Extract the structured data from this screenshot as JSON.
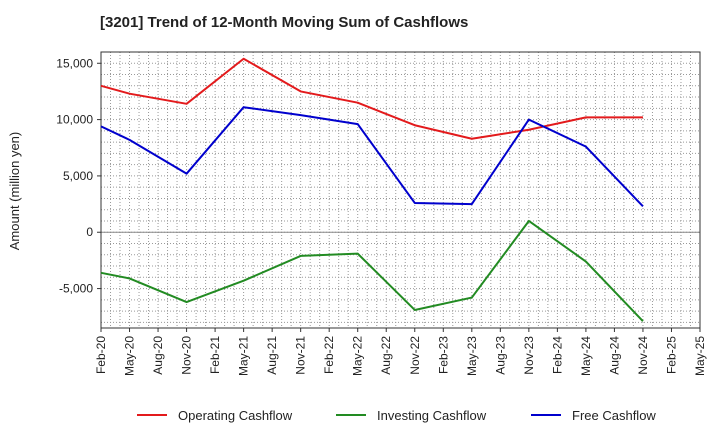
{
  "chart_data": {
    "type": "line",
    "title": "[3201]  Trend of 12-Month Moving Sum of Cashflows",
    "ylabel": "Amount (million yen)",
    "xlabel": "",
    "ylim": [
      -8500,
      16000
    ],
    "yticks": [
      -5000,
      0,
      5000,
      10000,
      15000
    ],
    "ytick_labels": [
      "-5,000",
      "0",
      "5,000",
      "10,000",
      "15,000"
    ],
    "categories": [
      "Feb-20",
      "May-20",
      "Aug-20",
      "Nov-20",
      "Feb-21",
      "May-21",
      "Aug-21",
      "Nov-21",
      "Feb-22",
      "May-22",
      "Aug-22",
      "Nov-22",
      "Feb-23",
      "May-23",
      "Aug-23",
      "Nov-23",
      "Feb-24",
      "May-24",
      "Aug-24",
      "Nov-24",
      "Feb-25",
      "May-25"
    ],
    "grid": true,
    "legend_position": "bottom",
    "series": [
      {
        "name": "Operating Cashflow",
        "color": "#e31a1c",
        "points": [
          {
            "x": "Feb-20",
            "y": 13000
          },
          {
            "x": "May-20",
            "y": 12300
          },
          {
            "x": "Nov-20",
            "y": 11400
          },
          {
            "x": "May-21",
            "y": 15400
          },
          {
            "x": "Nov-21",
            "y": 12500
          },
          {
            "x": "May-22",
            "y": 11500
          },
          {
            "x": "Nov-22",
            "y": 9500
          },
          {
            "x": "May-23",
            "y": 8300
          },
          {
            "x": "Nov-23",
            "y": 9100
          },
          {
            "x": "May-24",
            "y": 10200
          },
          {
            "x": "Nov-24",
            "y": 10200
          }
        ]
      },
      {
        "name": "Investing Cashflow",
        "color": "#228b22",
        "points": [
          {
            "x": "Feb-20",
            "y": -3600
          },
          {
            "x": "May-20",
            "y": -4100
          },
          {
            "x": "Nov-20",
            "y": -6200
          },
          {
            "x": "May-21",
            "y": -4300
          },
          {
            "x": "Nov-21",
            "y": -2100
          },
          {
            "x": "May-22",
            "y": -1900
          },
          {
            "x": "Nov-22",
            "y": -6900
          },
          {
            "x": "May-23",
            "y": -5800
          },
          {
            "x": "Nov-23",
            "y": 1000
          },
          {
            "x": "May-24",
            "y": -2600
          },
          {
            "x": "Nov-24",
            "y": -7900
          }
        ]
      },
      {
        "name": "Free Cashflow",
        "color": "#0000cd",
        "points": [
          {
            "x": "Feb-20",
            "y": 9400
          },
          {
            "x": "May-20",
            "y": 8200
          },
          {
            "x": "Nov-20",
            "y": 5200
          },
          {
            "x": "May-21",
            "y": 11100
          },
          {
            "x": "Nov-21",
            "y": 10400
          },
          {
            "x": "May-22",
            "y": 9600
          },
          {
            "x": "Nov-22",
            "y": 2600
          },
          {
            "x": "May-23",
            "y": 2500
          },
          {
            "x": "Nov-23",
            "y": 10000
          },
          {
            "x": "May-24",
            "y": 7600
          },
          {
            "x": "Nov-24",
            "y": 2300
          }
        ]
      }
    ]
  }
}
